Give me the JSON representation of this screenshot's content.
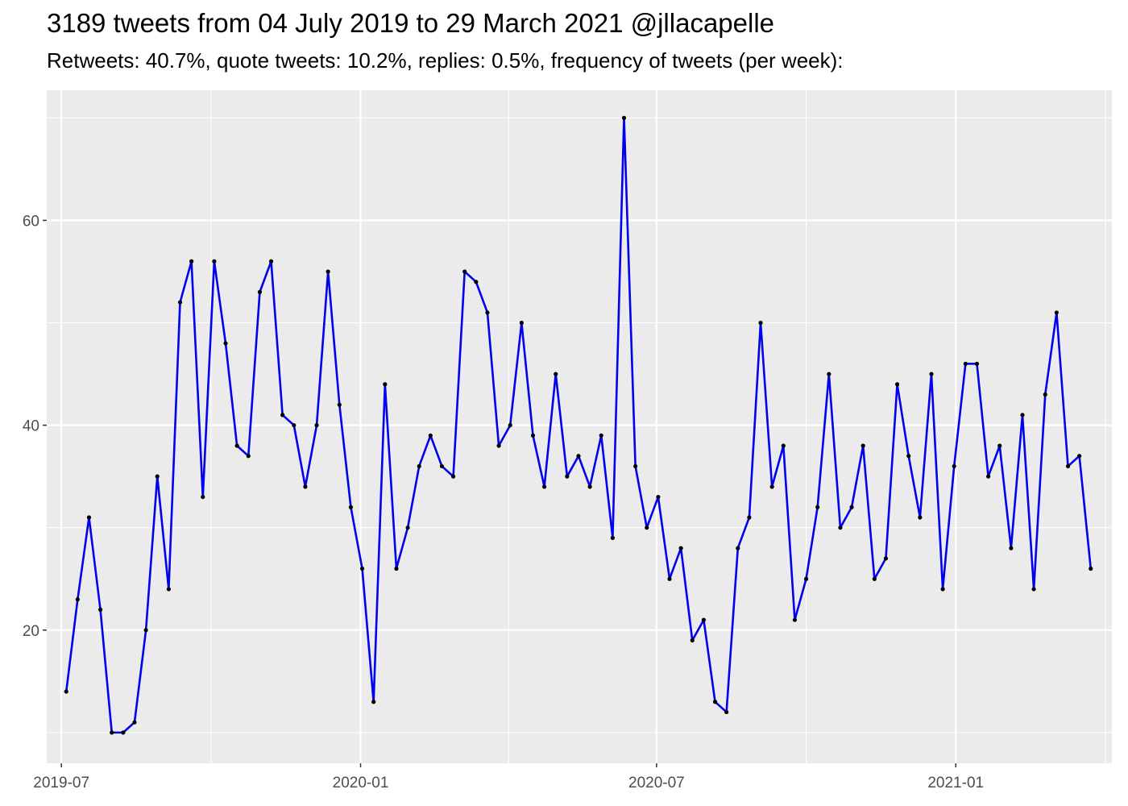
{
  "chart_data": {
    "type": "line",
    "title": "3189 tweets from 04 July 2019 to 29 March 2021 @jllacapelle",
    "subtitle": "Retweets: 40.7%, quote tweets: 10.2%, replies: 0.5%, frequency of tweets (per week):",
    "xlabel": "",
    "ylabel": "",
    "x_start": "2019-07-04",
    "x_step_days": 7,
    "x_range": [
      "2019-06-22",
      "2021-04-07"
    ],
    "ylim": [
      7.0,
      72.7
    ],
    "y_ticks": [
      20,
      40,
      60
    ],
    "x_ticks": [
      {
        "date": "2019-07-01",
        "label": "2019-07"
      },
      {
        "date": "2020-01-01",
        "label": "2020-01"
      },
      {
        "date": "2020-07-01",
        "label": "2020-07"
      },
      {
        "date": "2021-01-01",
        "label": "2021-01"
      }
    ],
    "grid": true,
    "legend": "none",
    "colors": {
      "line": "#0000ee",
      "point": "#000000",
      "panel": "#ebebeb",
      "grid": "#ffffff"
    },
    "series": [
      {
        "values": [
          14,
          23,
          31,
          22,
          10,
          10,
          11,
          20,
          35,
          24,
          52,
          56,
          33,
          56,
          48,
          38,
          37,
          53,
          56,
          41,
          40,
          34,
          40,
          55,
          42,
          32,
          26,
          13,
          44,
          26,
          30,
          36,
          39,
          36,
          35,
          55,
          54,
          51,
          38,
          40,
          50,
          39,
          34,
          45,
          35,
          37,
          34,
          39,
          29,
          70,
          36,
          30,
          33,
          25,
          28,
          19,
          21,
          13,
          12,
          28,
          31,
          50,
          34,
          38,
          21,
          25,
          32,
          45,
          30,
          32,
          38,
          25,
          27,
          44,
          37,
          31,
          45,
          24,
          36,
          46,
          46,
          35,
          38,
          28,
          41,
          24,
          43,
          51,
          36,
          37,
          26
        ]
      }
    ]
  }
}
